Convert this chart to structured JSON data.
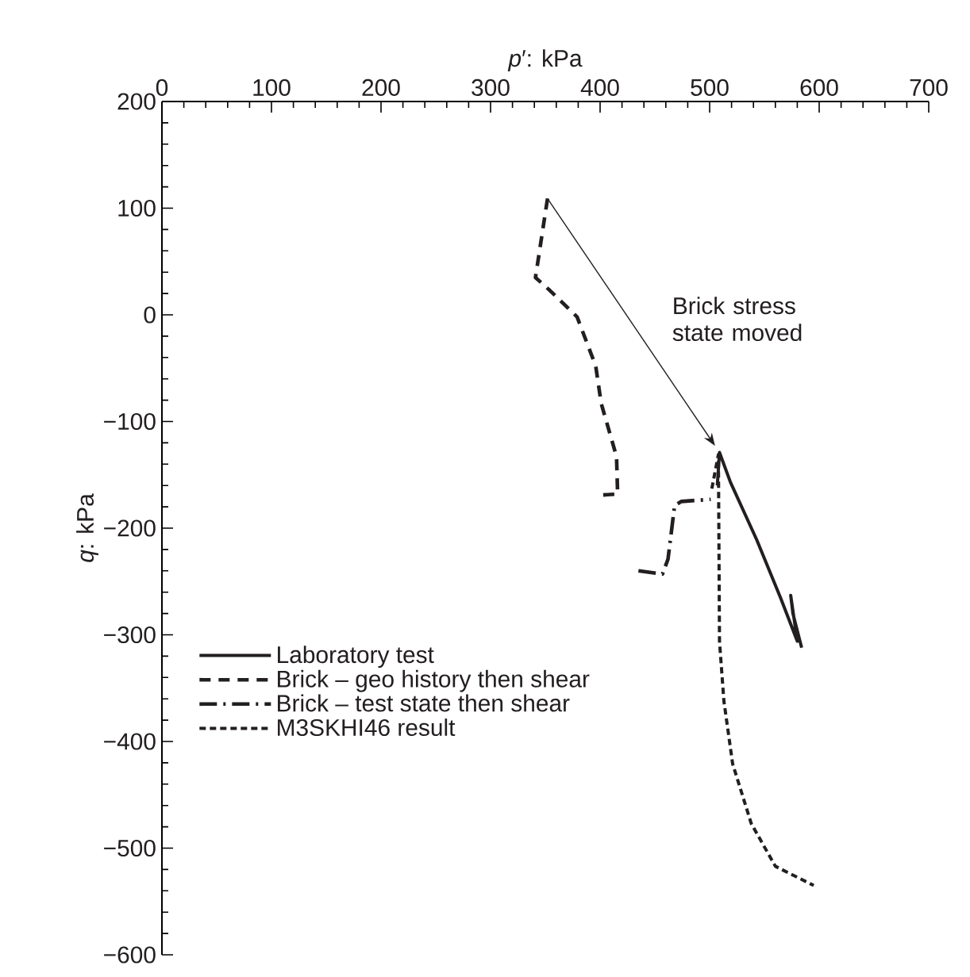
{
  "chart_data": {
    "type": "line",
    "xlabel": "*p*′: kPa",
    "ylabel": "*q*: kPa",
    "xlim": [
      0,
      700
    ],
    "xticks": [
      0,
      100,
      200,
      300,
      400,
      500,
      600,
      700
    ],
    "ylim": [
      -600,
      200
    ],
    "yticks": [
      {
        "value": -600,
        "label": "−600"
      },
      {
        "value": -500,
        "label": "−500"
      },
      {
        "value": -400,
        "label": "−400"
      },
      {
        "value": -300,
        "label": "−300"
      },
      {
        "value": -200,
        "label": "−200"
      },
      {
        "value": -100,
        "label": "−100"
      },
      0,
      100,
      200
    ],
    "legend": "left",
    "annotations": [
      "Brick stress state moved"
    ],
    "series": [
      {
        "name": "Laboratory test",
        "color": "#231f20",
        "line_style": "solid",
        "x": [
          507,
          509,
          519,
          543,
          565,
          580,
          574,
          576,
          584
        ],
        "values": [
          -160,
          -129,
          -157,
          -211,
          -266,
          -306,
          -263,
          -280,
          -312
        ]
      },
      {
        "name": "Brick – geo history then shear",
        "color": "#231f20",
        "line_style": "dashed",
        "x": [
          352,
          341,
          354,
          379,
          396,
          401,
          415,
          416,
          401
        ],
        "values": [
          109,
          35,
          23,
          -2,
          -48,
          -83,
          -133,
          -168,
          -169
        ]
      },
      {
        "name": "Brick – test state then shear",
        "color": "#231f20",
        "line_style": "dashdot",
        "x": [
          435,
          457,
          462,
          468,
          474,
          501
        ],
        "values": [
          -240,
          -243,
          -229,
          -179,
          -175,
          -173
        ]
      },
      {
        "name": "M3SKHI46 result",
        "color": "#231f20",
        "line_style": "dotted",
        "x": [
          502,
          508,
          509,
          513,
          521,
          538,
          560,
          595
        ],
        "values": [
          -163,
          -131,
          -306,
          -362,
          -421,
          -477,
          -517,
          -535
        ]
      }
    ]
  }
}
